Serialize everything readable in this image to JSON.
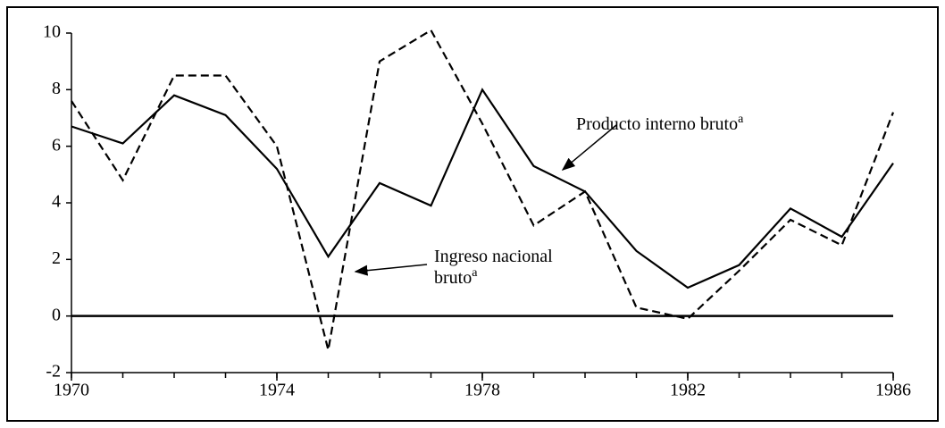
{
  "chart_data": {
    "type": "line",
    "x": [
      1970,
      1971,
      1972,
      1973,
      1974,
      1975,
      1976,
      1977,
      1978,
      1979,
      1980,
      1981,
      1982,
      1983,
      1984,
      1985,
      1986
    ],
    "series": [
      {
        "name": "Producto interno bruto",
        "note": "a",
        "color": "#000",
        "dash": false,
        "values": [
          6.7,
          6.1,
          7.8,
          7.1,
          5.2,
          2.1,
          4.7,
          3.9,
          8.0,
          5.3,
          4.4,
          2.3,
          1.0,
          1.8,
          3.8,
          2.8,
          5.4
        ]
      },
      {
        "name": "Ingreso nacional bruto",
        "note": "a",
        "color": "#000",
        "dash": true,
        "values": [
          7.6,
          4.8,
          8.5,
          8.5,
          6.0,
          -1.2,
          9.0,
          10.1,
          6.8,
          3.2,
          4.4,
          0.3,
          -0.1,
          1.6,
          3.4,
          2.5,
          7.2
        ]
      }
    ],
    "xlim": [
      1970,
      1986
    ],
    "xticks": [
      1970,
      1974,
      1978,
      1982,
      1986
    ],
    "ylim": [
      -2,
      10
    ],
    "yticks": [
      -2,
      0,
      2,
      4,
      6,
      8,
      10
    ]
  }
}
